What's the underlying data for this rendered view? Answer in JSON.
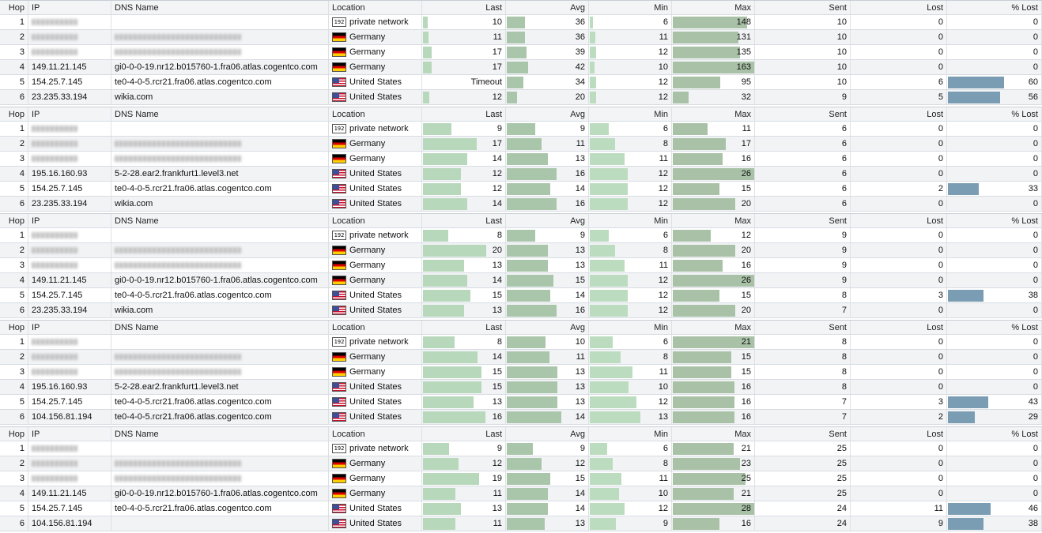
{
  "colors": {
    "last_bar": "#b8d8bc",
    "avg_bar": "#aac6aa",
    "min_bar": "#bcdcc0",
    "max_bar": "#a9c2a7",
    "lost_bar": "#7b9db3"
  },
  "columns": [
    "Hop",
    "IP",
    "DNS Name",
    "Location",
    "Last",
    "Avg",
    "Min",
    "Max",
    "Sent",
    "Lost",
    "% Lost"
  ],
  "groups": [
    {
      "max_scale": 163,
      "rows": [
        {
          "hop": "1",
          "ip": "",
          "ip_redacted": true,
          "dns": "",
          "dns_redacted": false,
          "flag": "lan",
          "location": "private network",
          "last": "10",
          "avg": "36",
          "min": "6",
          "max": "148",
          "sent": "10",
          "lost": "0",
          "pct_lost": "0"
        },
        {
          "hop": "2",
          "ip": "",
          "ip_redacted": true,
          "dns": "",
          "dns_redacted": true,
          "flag": "de",
          "location": "Germany",
          "last": "11",
          "avg": "36",
          "min": "11",
          "max": "131",
          "sent": "10",
          "lost": "0",
          "pct_lost": "0"
        },
        {
          "hop": "3",
          "ip": "",
          "ip_redacted": true,
          "dns": "",
          "dns_redacted": true,
          "flag": "de",
          "location": "Germany",
          "last": "17",
          "avg": "39",
          "min": "12",
          "max": "135",
          "sent": "10",
          "lost": "0",
          "pct_lost": "0"
        },
        {
          "hop": "4",
          "ip": "149.11.21.145",
          "ip_redacted": false,
          "dns": "gi0-0-0-19.nr12.b015760-1.fra06.atlas.cogentco.com",
          "dns_redacted": false,
          "flag": "de",
          "location": "Germany",
          "last": "17",
          "avg": "42",
          "min": "10",
          "max": "163",
          "sent": "10",
          "lost": "0",
          "pct_lost": "0"
        },
        {
          "hop": "5",
          "ip": "154.25.7.145",
          "ip_redacted": false,
          "dns": "te0-4-0-5.rcr21.fra06.atlas.cogentco.com",
          "dns_redacted": false,
          "flag": "us",
          "location": "United States",
          "last": "Timeout",
          "avg": "34",
          "min": "12",
          "max": "95",
          "sent": "10",
          "lost": "6",
          "pct_lost": "60"
        },
        {
          "hop": "6",
          "ip": "23.235.33.194",
          "ip_redacted": false,
          "dns": "wikia.com",
          "dns_redacted": false,
          "flag": "us",
          "location": "United States",
          "last": "12",
          "avg": "20",
          "min": "12",
          "max": "32",
          "sent": "9",
          "lost": "5",
          "pct_lost": "56"
        }
      ]
    },
    {
      "max_scale": 26,
      "rows": [
        {
          "hop": "1",
          "ip": "",
          "ip_redacted": true,
          "dns": "",
          "dns_redacted": false,
          "flag": "lan",
          "location": "private network",
          "last": "9",
          "avg": "9",
          "min": "6",
          "max": "11",
          "sent": "6",
          "lost": "0",
          "pct_lost": "0"
        },
        {
          "hop": "2",
          "ip": "",
          "ip_redacted": true,
          "dns": "",
          "dns_redacted": true,
          "flag": "de",
          "location": "Germany",
          "last": "17",
          "avg": "11",
          "min": "8",
          "max": "17",
          "sent": "6",
          "lost": "0",
          "pct_lost": "0"
        },
        {
          "hop": "3",
          "ip": "",
          "ip_redacted": true,
          "dns": "",
          "dns_redacted": true,
          "flag": "de",
          "location": "Germany",
          "last": "14",
          "avg": "13",
          "min": "11",
          "max": "16",
          "sent": "6",
          "lost": "0",
          "pct_lost": "0"
        },
        {
          "hop": "4",
          "ip": "195.16.160.93",
          "ip_redacted": false,
          "dns": "5-2-28.ear2.frankfurt1.level3.net",
          "dns_redacted": false,
          "flag": "us",
          "location": "United States",
          "last": "12",
          "avg": "16",
          "min": "12",
          "max": "26",
          "sent": "6",
          "lost": "0",
          "pct_lost": "0"
        },
        {
          "hop": "5",
          "ip": "154.25.7.145",
          "ip_redacted": false,
          "dns": "te0-4-0-5.rcr21.fra06.atlas.cogentco.com",
          "dns_redacted": false,
          "flag": "us",
          "location": "United States",
          "last": "12",
          "avg": "14",
          "min": "12",
          "max": "15",
          "sent": "6",
          "lost": "2",
          "pct_lost": "33"
        },
        {
          "hop": "6",
          "ip": "23.235.33.194",
          "ip_redacted": false,
          "dns": "wikia.com",
          "dns_redacted": false,
          "flag": "us",
          "location": "United States",
          "last": "14",
          "avg": "16",
          "min": "12",
          "max": "20",
          "sent": "6",
          "lost": "0",
          "pct_lost": "0"
        }
      ]
    },
    {
      "max_scale": 26,
      "rows": [
        {
          "hop": "1",
          "ip": "",
          "ip_redacted": true,
          "dns": "",
          "dns_redacted": false,
          "flag": "lan",
          "location": "private network",
          "last": "8",
          "avg": "9",
          "min": "6",
          "max": "12",
          "sent": "9",
          "lost": "0",
          "pct_lost": "0"
        },
        {
          "hop": "2",
          "ip": "",
          "ip_redacted": true,
          "dns": "",
          "dns_redacted": true,
          "flag": "de",
          "location": "Germany",
          "last": "20",
          "avg": "13",
          "min": "8",
          "max": "20",
          "sent": "9",
          "lost": "0",
          "pct_lost": "0"
        },
        {
          "hop": "3",
          "ip": "",
          "ip_redacted": true,
          "dns": "",
          "dns_redacted": true,
          "flag": "de",
          "location": "Germany",
          "last": "13",
          "avg": "13",
          "min": "11",
          "max": "16",
          "sent": "9",
          "lost": "0",
          "pct_lost": "0"
        },
        {
          "hop": "4",
          "ip": "149.11.21.145",
          "ip_redacted": false,
          "dns": "gi0-0-0-19.nr12.b015760-1.fra06.atlas.cogentco.com",
          "dns_redacted": false,
          "flag": "de",
          "location": "Germany",
          "last": "14",
          "avg": "15",
          "min": "12",
          "max": "26",
          "sent": "9",
          "lost": "0",
          "pct_lost": "0"
        },
        {
          "hop": "5",
          "ip": "154.25.7.145",
          "ip_redacted": false,
          "dns": "te0-4-0-5.rcr21.fra06.atlas.cogentco.com",
          "dns_redacted": false,
          "flag": "us",
          "location": "United States",
          "last": "15",
          "avg": "14",
          "min": "12",
          "max": "15",
          "sent": "8",
          "lost": "3",
          "pct_lost": "38"
        },
        {
          "hop": "6",
          "ip": "23.235.33.194",
          "ip_redacted": false,
          "dns": "wikia.com",
          "dns_redacted": false,
          "flag": "us",
          "location": "United States",
          "last": "13",
          "avg": "16",
          "min": "12",
          "max": "20",
          "sent": "7",
          "lost": "0",
          "pct_lost": "0"
        }
      ]
    },
    {
      "max_scale": 21,
      "rows": [
        {
          "hop": "1",
          "ip": "",
          "ip_redacted": true,
          "dns": "",
          "dns_redacted": false,
          "flag": "lan",
          "location": "private network",
          "last": "8",
          "avg": "10",
          "min": "6",
          "max": "21",
          "sent": "8",
          "lost": "0",
          "pct_lost": "0"
        },
        {
          "hop": "2",
          "ip": "",
          "ip_redacted": true,
          "dns": "",
          "dns_redacted": true,
          "flag": "de",
          "location": "Germany",
          "last": "14",
          "avg": "11",
          "min": "8",
          "max": "15",
          "sent": "8",
          "lost": "0",
          "pct_lost": "0"
        },
        {
          "hop": "3",
          "ip": "",
          "ip_redacted": true,
          "dns": "",
          "dns_redacted": true,
          "flag": "de",
          "location": "Germany",
          "last": "15",
          "avg": "13",
          "min": "11",
          "max": "15",
          "sent": "8",
          "lost": "0",
          "pct_lost": "0"
        },
        {
          "hop": "4",
          "ip": "195.16.160.93",
          "ip_redacted": false,
          "dns": "5-2-28.ear2.frankfurt1.level3.net",
          "dns_redacted": false,
          "flag": "us",
          "location": "United States",
          "last": "15",
          "avg": "13",
          "min": "10",
          "max": "16",
          "sent": "8",
          "lost": "0",
          "pct_lost": "0"
        },
        {
          "hop": "5",
          "ip": "154.25.7.145",
          "ip_redacted": false,
          "dns": "te0-4-0-5.rcr21.fra06.atlas.cogentco.com",
          "dns_redacted": false,
          "flag": "us",
          "location": "United States",
          "last": "13",
          "avg": "13",
          "min": "12",
          "max": "16",
          "sent": "7",
          "lost": "3",
          "pct_lost": "43"
        },
        {
          "hop": "6",
          "ip": "104.156.81.194",
          "ip_redacted": false,
          "dns": "te0-4-0-5.rcr21.fra06.atlas.cogentco.com",
          "dns_redacted": false,
          "flag": "us",
          "location": "United States",
          "last": "16",
          "avg": "14",
          "min": "13",
          "max": "16",
          "sent": "7",
          "lost": "2",
          "pct_lost": "29"
        }
      ]
    },
    {
      "max_scale": 28,
      "rows": [
        {
          "hop": "1",
          "ip": "",
          "ip_redacted": true,
          "dns": "",
          "dns_redacted": false,
          "flag": "lan",
          "location": "private network",
          "last": "9",
          "avg": "9",
          "min": "6",
          "max": "21",
          "sent": "25",
          "lost": "0",
          "pct_lost": "0"
        },
        {
          "hop": "2",
          "ip": "",
          "ip_redacted": true,
          "dns": "",
          "dns_redacted": true,
          "flag": "de",
          "location": "Germany",
          "last": "12",
          "avg": "12",
          "min": "8",
          "max": "23",
          "sent": "25",
          "lost": "0",
          "pct_lost": "0"
        },
        {
          "hop": "3",
          "ip": "",
          "ip_redacted": true,
          "dns": "",
          "dns_redacted": true,
          "flag": "de",
          "location": "Germany",
          "last": "19",
          "avg": "15",
          "min": "11",
          "max": "25",
          "sent": "25",
          "lost": "0",
          "pct_lost": "0"
        },
        {
          "hop": "4",
          "ip": "149.11.21.145",
          "ip_redacted": false,
          "dns": "gi0-0-0-19.nr12.b015760-1.fra06.atlas.cogentco.com",
          "dns_redacted": false,
          "flag": "de",
          "location": "Germany",
          "last": "11",
          "avg": "14",
          "min": "10",
          "max": "21",
          "sent": "25",
          "lost": "0",
          "pct_lost": "0"
        },
        {
          "hop": "5",
          "ip": "154.25.7.145",
          "ip_redacted": false,
          "dns": "te0-4-0-5.rcr21.fra06.atlas.cogentco.com",
          "dns_redacted": false,
          "flag": "us",
          "location": "United States",
          "last": "13",
          "avg": "14",
          "min": "12",
          "max": "28",
          "sent": "24",
          "lost": "11",
          "pct_lost": "46"
        },
        {
          "hop": "6",
          "ip": "104.156.81.194",
          "ip_redacted": false,
          "dns": "",
          "dns_redacted": false,
          "flag": "us",
          "location": "United States",
          "last": "11",
          "avg": "13",
          "min": "9",
          "max": "16",
          "sent": "24",
          "lost": "9",
          "pct_lost": "38"
        }
      ]
    }
  ]
}
